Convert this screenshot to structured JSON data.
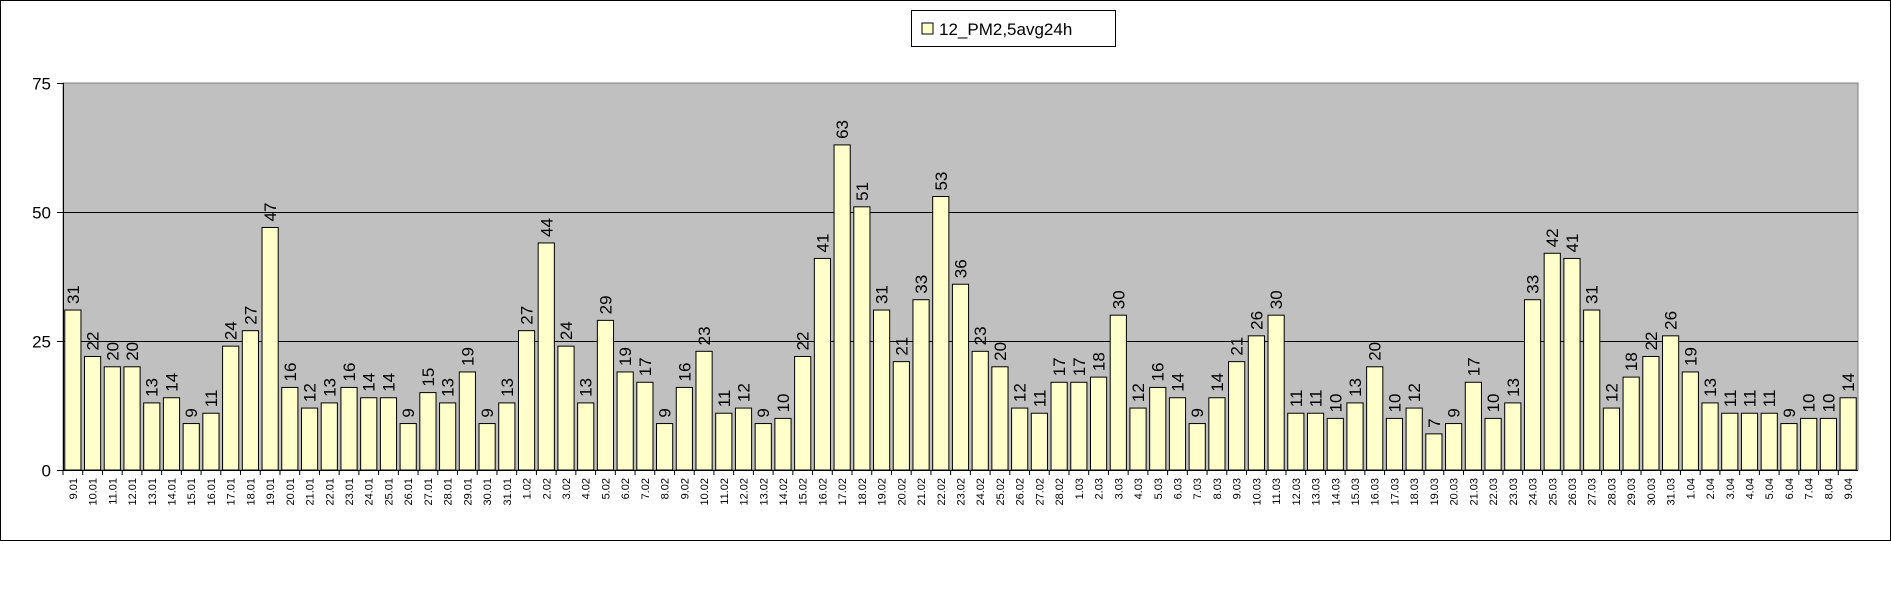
{
  "chart_data": {
    "type": "bar",
    "title": "",
    "xlabel": "",
    "ylabel": "",
    "ylim": [
      0,
      75
    ],
    "yticks": [
      0,
      25,
      50,
      75
    ],
    "grid": true,
    "legend_position": "top-center",
    "colors": {
      "bar_fill": "#FFFFCC",
      "bar_stroke": "#000000",
      "plot_background": "#C0C0C0",
      "gridline": "#000000"
    },
    "categories": [
      "9.01",
      "10.01",
      "11.01",
      "12.01",
      "13.01",
      "14.01",
      "15.01",
      "16.01",
      "17.01",
      "18.01",
      "19.01",
      "20.01",
      "21.01",
      "22.01",
      "23.01",
      "24.01",
      "25.01",
      "26.01",
      "27.01",
      "28.01",
      "29.01",
      "30.01",
      "31.01",
      "1.02",
      "2.02",
      "3.02",
      "4.02",
      "5.02",
      "6.02",
      "7.02",
      "8.02",
      "9.02",
      "10.02",
      "11.02",
      "12.02",
      "13.02",
      "14.02",
      "15.02",
      "16.02",
      "17.02",
      "18.02",
      "19.02",
      "20.02",
      "21.02",
      "22.02",
      "23.02",
      "24.02",
      "25.02",
      "26.02",
      "27.02",
      "28.02",
      "1.03",
      "2.03",
      "3.03",
      "4.03",
      "5.03",
      "6.03",
      "7.03",
      "8.03",
      "9.03",
      "10.03",
      "11.03",
      "12.03",
      "13.03",
      "14.03",
      "15.03",
      "16.03",
      "17.03",
      "18.03",
      "19.03",
      "20.03",
      "21.03",
      "22.03",
      "23.03",
      "24.03",
      "25.03",
      "26.03",
      "27.03",
      "28.03",
      "29.03",
      "30.03",
      "31.03",
      "1.04",
      "2.04",
      "3.04",
      "4.04",
      "5.04",
      "6.04",
      "7.04",
      "8.04",
      "9.04"
    ],
    "series": [
      {
        "name": "12_PM2,5avg24h",
        "values": [
          31,
          22,
          20,
          20,
          13,
          14,
          9,
          11,
          24,
          27,
          47,
          16,
          12,
          13,
          16,
          14,
          14,
          9,
          15,
          13,
          19,
          9,
          13,
          27,
          44,
          24,
          13,
          29,
          19,
          17,
          9,
          16,
          23,
          11,
          12,
          9,
          10,
          22,
          41,
          63,
          51,
          31,
          21,
          33,
          53,
          36,
          23,
          20,
          12,
          11,
          17,
          17,
          18,
          30,
          12,
          16,
          14,
          9,
          14,
          21,
          26,
          30,
          11,
          11,
          10,
          13,
          20,
          10,
          12,
          7,
          9,
          17,
          10,
          13,
          33,
          42,
          41,
          31,
          12,
          18,
          22,
          26,
          19,
          13,
          11,
          11,
          11,
          9,
          10,
          10,
          14
        ]
      }
    ]
  }
}
